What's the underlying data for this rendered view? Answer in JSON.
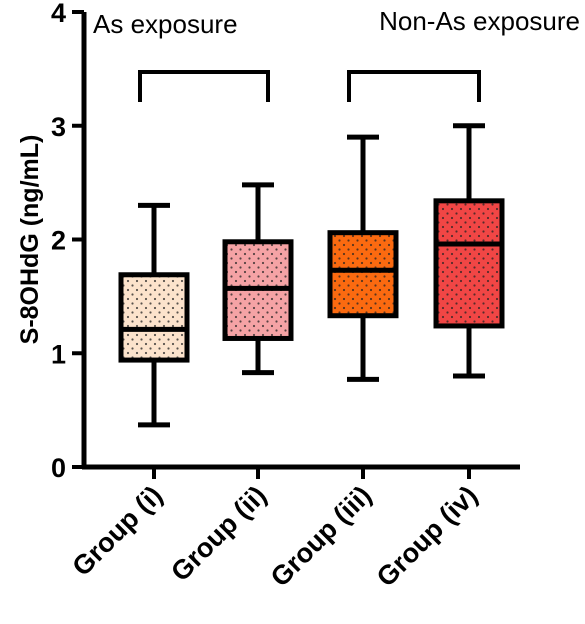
{
  "chart_data": {
    "type": "box",
    "ylabel": "S-8OHdG (ng/mL)",
    "ylim": [
      0,
      4
    ],
    "yticks": [
      "0",
      "1",
      "2",
      "3",
      "4"
    ],
    "categories": [
      "Group (i)",
      "Group (ii)",
      "Group (iii)",
      "Group (iv)"
    ],
    "boxes": [
      {
        "category": "Group (i)",
        "min": 0.37,
        "q1": 0.94,
        "median": 1.21,
        "q3": 1.69,
        "max": 2.3,
        "color": "#FCE3CC"
      },
      {
        "category": "Group (ii)",
        "min": 0.83,
        "q1": 1.13,
        "median": 1.57,
        "q3": 1.98,
        "max": 2.48,
        "color": "#F5A3A5"
      },
      {
        "category": "Group (iii)",
        "min": 0.77,
        "q1": 1.33,
        "median": 1.73,
        "q3": 2.06,
        "max": 2.9,
        "color": "#FB6A10"
      },
      {
        "category": "Group (iv)",
        "min": 0.8,
        "q1": 1.24,
        "median": 1.96,
        "q3": 2.34,
        "max": 3.0,
        "color": "#F14645"
      }
    ],
    "annotations": [
      {
        "text": "As exposure",
        "groups": [
          "Group (i)",
          "Group (ii)"
        ]
      },
      {
        "text": "Non-As exposure",
        "groups": [
          "Group (iii)",
          "Group (iv)"
        ]
      }
    ]
  }
}
